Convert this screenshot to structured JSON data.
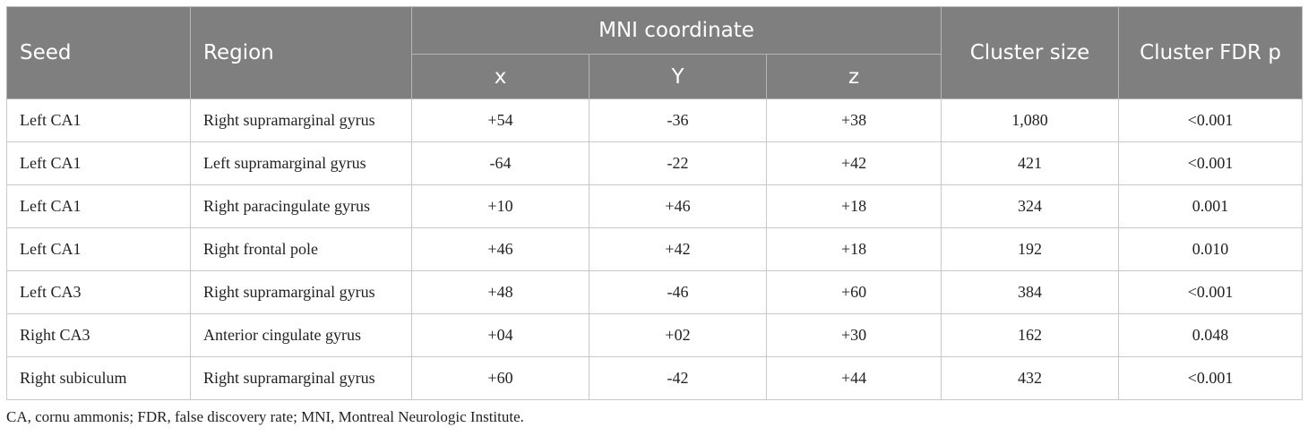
{
  "header": {
    "seed": "Seed",
    "region": "Region",
    "mni": "MNI coordinate",
    "x": "x",
    "y": "Y",
    "z": "z",
    "cluster_size": "Cluster size",
    "cluster_fdr": "Cluster FDR p"
  },
  "rows": [
    {
      "seed": "Left CA1",
      "region": "Right supramarginal gyrus",
      "x": "+54",
      "y": "-36",
      "z": "+38",
      "size": "1,080",
      "p": "<0.001"
    },
    {
      "seed": "Left CA1",
      "region": "Left supramarginal gyrus",
      "x": "-64",
      "y": "-22",
      "z": "+42",
      "size": "421",
      "p": "<0.001"
    },
    {
      "seed": "Left CA1",
      "region": "Right paracingulate gyrus",
      "x": "+10",
      "y": "+46",
      "z": "+18",
      "size": "324",
      "p": "0.001"
    },
    {
      "seed": "Left CA1",
      "region": "Right frontal pole",
      "x": "+46",
      "y": "+42",
      "z": "+18",
      "size": "192",
      "p": "0.010"
    },
    {
      "seed": "Left CA3",
      "region": "Right supramarginal gyrus",
      "x": "+48",
      "y": "-46",
      "z": "+60",
      "size": "384",
      "p": "<0.001"
    },
    {
      "seed": "Right CA3",
      "region": "Anterior cingulate gyrus",
      "x": "+04",
      "y": "+02",
      "z": "+30",
      "size": "162",
      "p": "0.048"
    },
    {
      "seed": "Right subiculum",
      "region": "Right supramarginal gyrus",
      "x": "+60",
      "y": "-42",
      "z": "+44",
      "size": "432",
      "p": "<0.001"
    }
  ],
  "footnote": "CA, cornu ammonis; FDR, false discovery rate; MNI, Montreal Neurologic Institute."
}
